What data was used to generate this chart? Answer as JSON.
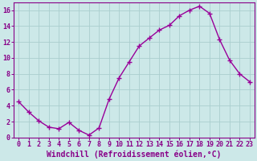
{
  "x": [
    0,
    1,
    2,
    3,
    4,
    5,
    6,
    7,
    8,
    9,
    10,
    11,
    12,
    13,
    14,
    15,
    16,
    17,
    18,
    19,
    20,
    21,
    22,
    23
  ],
  "y": [
    4.5,
    3.2,
    2.1,
    1.3,
    1.1,
    1.9,
    0.9,
    0.3,
    1.2,
    4.8,
    7.5,
    9.5,
    11.5,
    12.5,
    13.5,
    14.1,
    15.3,
    16.0,
    16.5,
    15.6,
    12.3,
    9.7,
    8.0,
    7.0
  ],
  "line_color": "#990099",
  "marker": "+",
  "marker_size": 4,
  "marker_lw": 1.0,
  "line_width": 1.0,
  "background_color": "#cce8e8",
  "grid_color": "#aacece",
  "xlabel": "Windchill (Refroidissement éolien,°C)",
  "xlim": [
    -0.5,
    23.5
  ],
  "ylim": [
    0,
    17
  ],
  "xticks": [
    0,
    1,
    2,
    3,
    4,
    5,
    6,
    7,
    8,
    9,
    10,
    11,
    12,
    13,
    14,
    15,
    16,
    17,
    18,
    19,
    20,
    21,
    22,
    23
  ],
  "yticks": [
    0,
    2,
    4,
    6,
    8,
    10,
    12,
    14,
    16
  ],
  "tick_color": "#880088",
  "label_color": "#880088",
  "spine_color": "#880088",
  "font_size_tick": 6,
  "font_size_label": 7
}
